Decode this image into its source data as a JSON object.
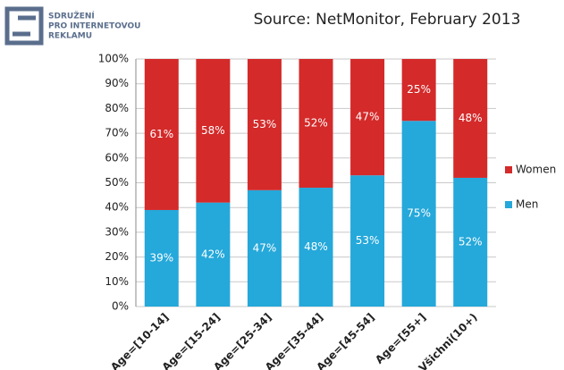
{
  "logo": {
    "lines": [
      "SDRUŽENÍ",
      "PRO INTERNETOVOU",
      "REKLAMU"
    ]
  },
  "chart_data": {
    "type": "stacked_bar",
    "title": "Source: NetMonitor, February 2013",
    "categories": [
      "Age=[10-14]",
      "Age=[15-24]",
      "Age=[25-34]",
      "Age=[35-44]",
      "Age=[45-54]",
      "Age=[55+]",
      "Všichni(10+)"
    ],
    "series": [
      {
        "name": "Men",
        "color": "#25a8da",
        "values": [
          39,
          42,
          47,
          48,
          53,
          75,
          52
        ],
        "value_labels": [
          "39%",
          "42%",
          "47%",
          "48%",
          "53%",
          "75%",
          "52%"
        ]
      },
      {
        "name": "Women",
        "color": "#d42a2a",
        "values": [
          61,
          58,
          53,
          52,
          47,
          25,
          48
        ],
        "value_labels": [
          "61%",
          "58%",
          "53%",
          "52%",
          "47%",
          "25%",
          "48%"
        ]
      }
    ],
    "ylim": [
      0,
      100
    ],
    "yticks": [
      {
        "value": 0,
        "label": "0%"
      },
      {
        "value": 10,
        "label": "10%"
      },
      {
        "value": 20,
        "label": "20%"
      },
      {
        "value": 30,
        "label": "30%"
      },
      {
        "value": 40,
        "label": "40%"
      },
      {
        "value": 50,
        "label": "50%"
      },
      {
        "value": 60,
        "label": "60%"
      },
      {
        "value": 70,
        "label": "70%"
      },
      {
        "value": 80,
        "label": "80%"
      },
      {
        "value": 90,
        "label": "90%"
      },
      {
        "value": 100,
        "label": "100%"
      }
    ],
    "grid": true,
    "legend": "right"
  }
}
